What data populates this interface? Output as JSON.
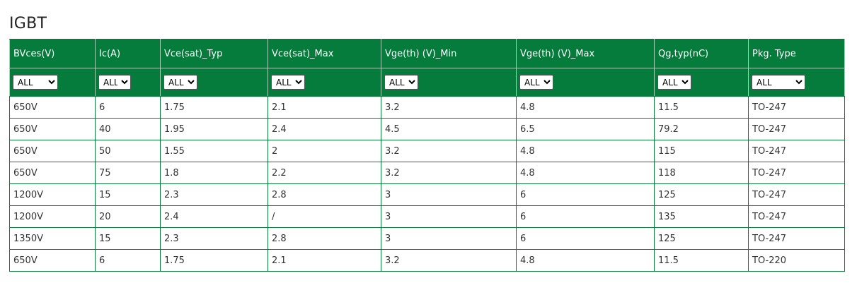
{
  "page_title": "IGBT",
  "table": {
    "columns": [
      {
        "label": "BVces(V)",
        "filter": "ALL"
      },
      {
        "label": "Ic(A)",
        "filter": "ALL"
      },
      {
        "label": "Vce(sat)_Typ",
        "filter": "ALL"
      },
      {
        "label": "Vce(sat)_Max",
        "filter": "ALL"
      },
      {
        "label": "Vge(th) (V)_Min",
        "filter": "ALL"
      },
      {
        "label": "Vge(th) (V)_Max",
        "filter": "ALL"
      },
      {
        "label": "Qg,typ(nC)",
        "filter": "ALL"
      },
      {
        "label": "Pkg. Type",
        "filter": "ALL"
      }
    ],
    "rows": [
      [
        "650V",
        "6",
        "1.75",
        "2.1",
        "3.2",
        "4.8",
        "11.5",
        "TO-247"
      ],
      [
        "650V",
        "40",
        "1.95",
        "2.4",
        "4.5",
        "6.5",
        "79.2",
        "TO-247"
      ],
      [
        "650V",
        "50",
        "1.55",
        "2",
        "3.2",
        "4.8",
        "115",
        "TO-247"
      ],
      [
        "650V",
        "75",
        "1.8",
        "2.2",
        "3.2",
        "4.8",
        "118",
        "TO-247"
      ],
      [
        "1200V",
        "15",
        "2.3",
        "2.8",
        "3",
        "6",
        "125",
        "TO-247"
      ],
      [
        "1200V",
        "20",
        "2.4",
        "/",
        "3",
        "6",
        "135",
        "TO-247"
      ],
      [
        "1350V",
        "15",
        "2.3",
        "2.8",
        "3",
        "6",
        "125",
        "TO-247"
      ],
      [
        "650V",
        "6",
        "1.75",
        "2.1",
        "3.2",
        "4.8",
        "11.5",
        "TO-220"
      ]
    ]
  },
  "colors": {
    "header_background": "#067c3c",
    "border": "#0a7a3a",
    "header_text": "#ffffff"
  }
}
